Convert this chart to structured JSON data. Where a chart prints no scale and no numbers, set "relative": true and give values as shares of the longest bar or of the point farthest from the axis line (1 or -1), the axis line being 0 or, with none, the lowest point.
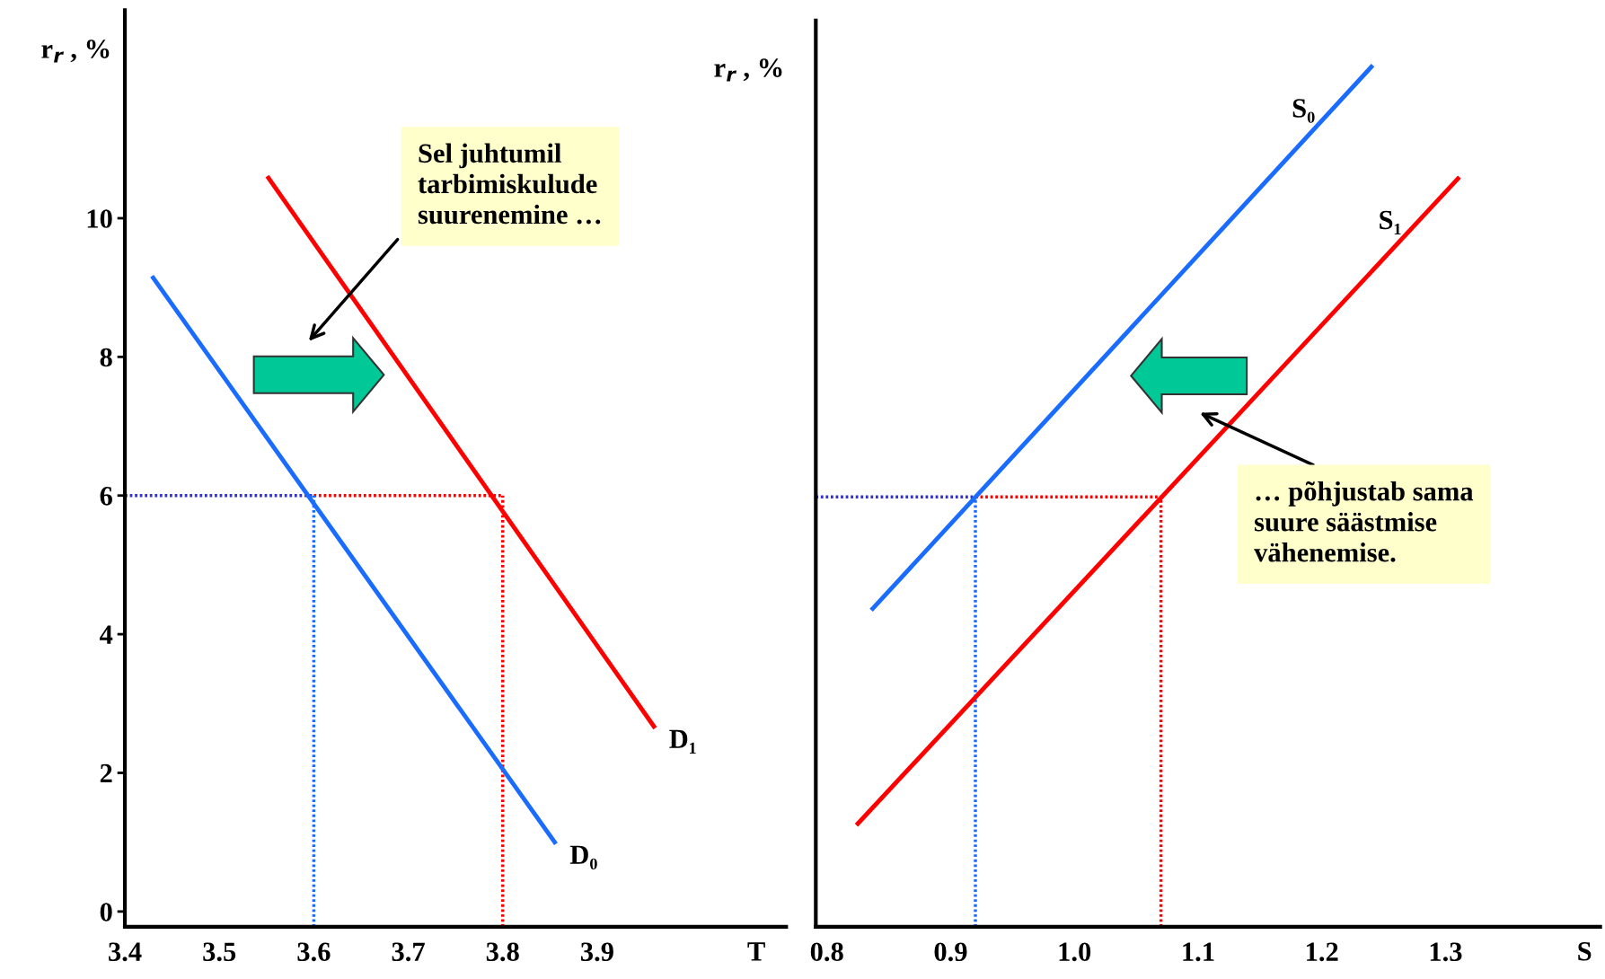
{
  "chart_data": [
    {
      "type": "line",
      "xlabel": "T",
      "ylabel": "r$_{r}$ , %",
      "xlim": [
        3.4,
        4.1
      ],
      "ylim": [
        -0.22,
        13
      ],
      "xticks": [
        3.4,
        3.5,
        3.6,
        3.7,
        3.8,
        3.9
      ],
      "yticks": [
        0,
        2,
        4,
        6,
        8,
        10
      ],
      "grid": false,
      "legend": false,
      "series": [
        {
          "name": "D₀",
          "color": "#1a6cff",
          "x": [
            3.43,
            3.855
          ],
          "values": [
            9.14,
            1.0
          ]
        },
        {
          "name": "D₁",
          "color": "#ff0000",
          "x": [
            3.552,
            3.96
          ],
          "values": [
            10.58,
            2.67
          ]
        },
        {
          "color": "#3333cc",
          "x": [
            3.4,
            3.6
          ],
          "values": [
            6,
            6
          ],
          "line_style": "dotted"
        },
        {
          "color": "#ff0000",
          "x": [
            3.6,
            3.8
          ],
          "values": [
            6,
            6
          ],
          "line_style": "dotted"
        },
        {
          "color": "#1a6cff",
          "x": [
            3.6,
            3.6
          ],
          "values": [
            -0.22,
            6
          ],
          "line_style": "dotted"
        },
        {
          "color": "#ff0000",
          "x": [
            3.8,
            3.8
          ],
          "values": [
            -0.22,
            6
          ],
          "line_style": "dotted"
        }
      ],
      "annotations": [
        "Sel juhtumil\ntarbimiskulude\nsuurenemine …"
      ]
    },
    {
      "type": "line",
      "xlabel": "S",
      "ylabel": "r$_{r}$ , %",
      "xlim": [
        0.791,
        1.425
      ],
      "relative": true,
      "xticks": [
        0.8,
        0.9,
        {
          "value": 1.0,
          "label": "1.0"
        },
        1.1,
        1.2,
        1.3
      ],
      "tick_labels": "x",
      "grid": false,
      "legend": false,
      "series": [
        {
          "name": "S₀",
          "color": "#1a6cff",
          "x": [
            0.837,
            1.24
          ],
          "values": [
            0.37,
            1
          ]
        },
        {
          "name": "S₁",
          "color": "#ff0000",
          "x": [
            0.825,
            1.31
          ],
          "values": [
            0.12,
            0.87
          ]
        },
        {
          "color": "#3333cc",
          "x": [
            0.791,
            0.92
          ],
          "values": [
            0.5,
            0.5
          ],
          "line_style": "dotted"
        },
        {
          "color": "#ff0000",
          "x": [
            0.92,
            1.07
          ],
          "values": [
            0.5,
            0.5
          ],
          "line_style": "dotted"
        },
        {
          "color": "#1a6cff",
          "x": [
            0.92,
            0.92
          ],
          "values": [
            0,
            0.5
          ],
          "line_style": "dotted"
        },
        {
          "color": "#ff0000",
          "x": [
            1.07,
            1.07
          ],
          "values": [
            0,
            0.5
          ],
          "line_style": "dotted"
        }
      ],
      "annotations": [
        "… põhjustab sama\nsuure säästmise\nvähenemise."
      ]
    }
  ]
}
